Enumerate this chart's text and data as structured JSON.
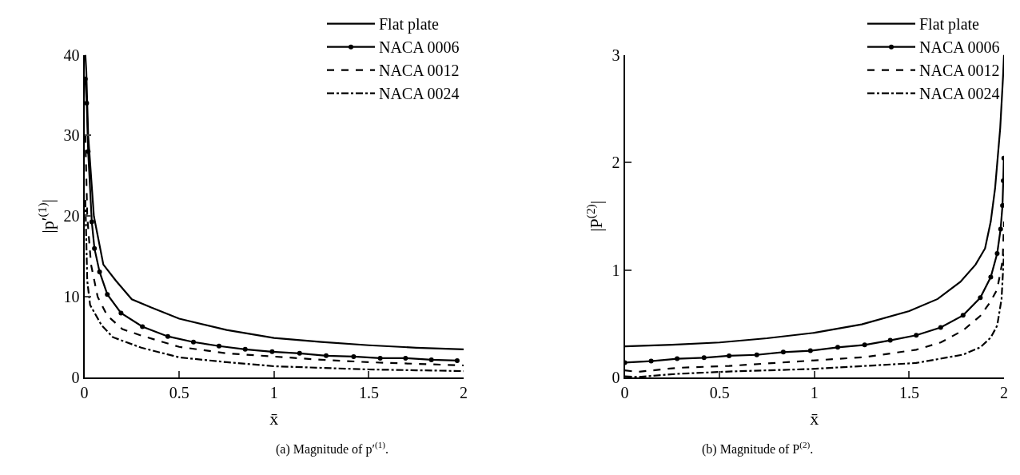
{
  "chart_data": [
    {
      "type": "line",
      "xlabel": "x̄",
      "ylabel": "|p′$^{(1)}$|",
      "annotations": [
        "(a) Magnitude of p′$^{(1)}$."
      ],
      "xlim": [
        0,
        2
      ],
      "ylim": [
        0,
        40
      ],
      "xticks": [
        0,
        0.5,
        1,
        1.5,
        2
      ],
      "yticks": [
        0,
        10,
        20,
        30,
        40
      ],
      "legend": "top right",
      "series": [
        {
          "name": "Flat plate",
          "color": "#000000",
          "marker": "none",
          "line_style": "solid",
          "x": [
            0.005,
            0.01,
            0.02,
            0.05,
            0.1,
            0.166,
            0.25,
            0.35,
            0.5,
            0.75,
            1,
            1.25,
            1.5,
            1.75,
            2
          ],
          "values": [
            40,
            38,
            30,
            20,
            14,
            12,
            9.7,
            8.7,
            7.3,
            5.9,
            4.9,
            4.4,
            4.0,
            3.7,
            3.5
          ]
        },
        {
          "name": "NACA 0006",
          "color": "#000000",
          "marker": "circle",
          "line_style": "solid",
          "x": [
            0.005,
            0.012,
            0.02,
            0.039,
            0.053,
            0.08,
            0.121,
            0.193,
            0.306,
            0.44,
            0.575,
            0.71,
            0.848,
            0.99,
            1.135,
            1.275,
            1.42,
            1.56,
            1.694,
            1.83,
            1.966
          ],
          "values": [
            37,
            34,
            28,
            19.3,
            16,
            13.1,
            10.3,
            8.0,
            6.3,
            5.1,
            4.4,
            3.9,
            3.5,
            3.2,
            3.0,
            2.7,
            2.6,
            2.4,
            2.4,
            2.2,
            2.1
          ]
        },
        {
          "name": "NACA 0012",
          "color": "#000000",
          "marker": "none",
          "line_style": "dashed",
          "x": [
            0.005,
            0.015,
            0.035,
            0.07,
            0.12,
            0.2,
            0.3,
            0.5,
            0.75,
            1,
            1.25,
            1.5,
            1.75,
            2
          ],
          "values": [
            30,
            20,
            14,
            10,
            7.7,
            6.0,
            5.2,
            3.8,
            3.0,
            2.6,
            2.2,
            1.9,
            1.7,
            1.5
          ]
        },
        {
          "name": "NACA 0024",
          "color": "#000000",
          "marker": "none",
          "line_style": "dashdot",
          "x": [
            0.005,
            0.015,
            0.03,
            0.09,
            0.15,
            0.3,
            0.5,
            0.75,
            1,
            1.25,
            1.5,
            1.75,
            2
          ],
          "values": [
            22,
            12,
            9,
            6.5,
            5,
            3.7,
            2.5,
            1.9,
            1.4,
            1.2,
            1.0,
            0.9,
            0.8
          ]
        }
      ]
    },
    {
      "type": "line",
      "xlabel": "x̄",
      "ylabel": "|P$^{(2)}$|",
      "annotations": [
        "(b) Magnitude of P$^{(2)}$."
      ],
      "xlim": [
        0,
        2
      ],
      "ylim": [
        0,
        3
      ],
      "xticks": [
        0,
        0.5,
        1,
        1.5,
        2
      ],
      "yticks": [
        0,
        1,
        2,
        3
      ],
      "legend": "top right",
      "series": [
        {
          "name": "Flat plate",
          "color": "#000000",
          "marker": "none",
          "line_style": "solid",
          "x": [
            0,
            0.25,
            0.5,
            0.75,
            1,
            1.25,
            1.5,
            1.65,
            1.77,
            1.85,
            1.9,
            1.93,
            1.953,
            1.98,
            1.995,
            2.0
          ],
          "values": [
            0.29,
            0.305,
            0.326,
            0.365,
            0.416,
            0.494,
            0.618,
            0.73,
            0.89,
            1.05,
            1.2,
            1.45,
            1.76,
            2.32,
            2.8,
            3.0
          ]
        },
        {
          "name": "NACA 0006",
          "color": "#000000",
          "marker": "circle",
          "line_style": "solid",
          "x": [
            0,
            0.139,
            0.276,
            0.418,
            0.55,
            0.696,
            0.836,
            0.979,
            1.123,
            1.265,
            1.4,
            1.537,
            1.666,
            1.784,
            1.875,
            1.93,
            1.964,
            1.982,
            1.992,
            1.996,
            1.999
          ],
          "values": [
            0.139,
            0.153,
            0.175,
            0.184,
            0.202,
            0.211,
            0.236,
            0.249,
            0.281,
            0.303,
            0.346,
            0.393,
            0.465,
            0.578,
            0.742,
            0.933,
            1.153,
            1.38,
            1.6,
            1.83,
            2.04
          ]
        },
        {
          "name": "NACA 0012",
          "color": "#000000",
          "marker": "none",
          "line_style": "dashed",
          "x": [
            0,
            0.065,
            0.276,
            0.55,
            0.979,
            1.265,
            1.537,
            1.666,
            1.784,
            1.875,
            1.93,
            1.964,
            1.993,
            2.0
          ],
          "values": [
            0.067,
            0.052,
            0.09,
            0.108,
            0.157,
            0.19,
            0.258,
            0.326,
            0.438,
            0.573,
            0.708,
            0.82,
            1.09,
            1.45
          ]
        },
        {
          "name": "NACA 0024",
          "color": "#000000",
          "marker": "none",
          "line_style": "dashdot",
          "x": [
            0,
            0.065,
            0.276,
            0.55,
            0.979,
            1.537,
            1.784,
            1.875,
            1.93,
            1.964,
            1.987,
            2.0
          ],
          "values": [
            0.011,
            0.005,
            0.034,
            0.056,
            0.079,
            0.135,
            0.213,
            0.281,
            0.371,
            0.483,
            0.73,
            1.16
          ]
        }
      ]
    }
  ]
}
